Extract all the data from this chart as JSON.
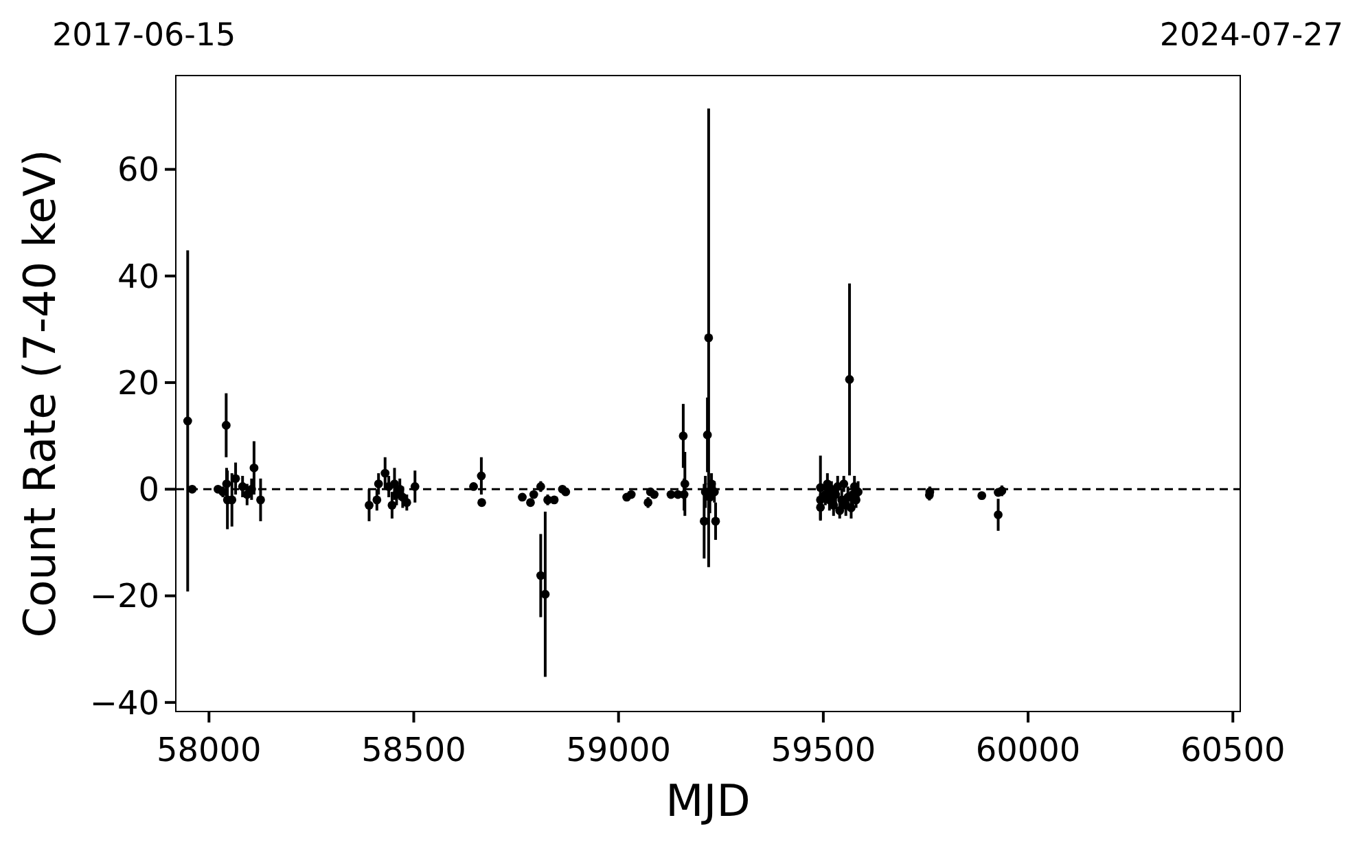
{
  "chart_data": {
    "type": "scatter",
    "xlabel": "MJD",
    "ylabel": "Count Rate (7-40 keV)",
    "xlim": [
      57919,
      60518
    ],
    "xticks": [
      58000,
      58500,
      59000,
      59500,
      60000,
      60500
    ],
    "annotations": [
      "2017-06-15",
      "2024-07-27"
    ],
    "ylim": [
      -41.7,
      77.6
    ],
    "yticks": [
      {
        "value": -40,
        "label": "−40"
      },
      {
        "value": -20,
        "label": "−20"
      },
      0,
      20,
      40,
      60
    ],
    "marker": "circle",
    "grid": false,
    "ref_lines": [
      {
        "axis": "y",
        "value": 0,
        "color": "#000000",
        "line_style": "dashed"
      }
    ],
    "series": [
      {
        "color": "#000000",
        "x": [
          57948,
          57959,
          58022,
          58034,
          58042,
          58043,
          58045,
          58056,
          58065,
          58082,
          58093,
          58104,
          58110,
          58126,
          58391,
          58410,
          58414,
          58430,
          58439,
          58447,
          58453,
          58458,
          58466,
          58473,
          58483,
          58503,
          58646,
          58665,
          58666,
          58765,
          58785,
          58793,
          58810,
          58810,
          58821,
          58827,
          58843,
          58863,
          58871,
          59020,
          59031,
          59072,
          59078,
          59087,
          59128,
          59145,
          59158,
          59162,
          59160,
          59209,
          59212,
          59217,
          59220,
          59223,
          59227,
          59234,
          59237,
          59493,
          59493,
          59493,
          59505,
          59510,
          59515,
          59520,
          59525,
          59530,
          59535,
          59540,
          59545,
          59550,
          59555,
          59560,
          59564,
          59568,
          59572,
          59576,
          59580,
          59585,
          59759,
          59760,
          59887,
          59927,
          59927,
          59936
        ],
        "values": [
          12.8,
          0,
          0,
          -0.5,
          12,
          1,
          -2,
          -2,
          2,
          0.5,
          -1,
          0,
          4,
          -2,
          -3,
          -2,
          1,
          3,
          0.5,
          -3,
          1,
          -1,
          0,
          -1.5,
          -2.5,
          0.5,
          0.5,
          2.5,
          -2.5,
          -1.5,
          -2.5,
          -1,
          0.5,
          -16.2,
          -19.7,
          -2,
          -2,
          0,
          -0.5,
          -1.5,
          -1,
          -2.5,
          -0.5,
          -1,
          -1,
          -1,
          10,
          1,
          -1,
          -6,
          -0.5,
          10.2,
          28.4,
          -1.5,
          1,
          -0.5,
          -6,
          0.3,
          -2,
          -3.4,
          -1,
          1,
          -2,
          0,
          -3,
          -1,
          0.5,
          -4,
          -2,
          1,
          -3,
          -1.5,
          20.6,
          -3.5,
          -1,
          0.5,
          -2,
          -0.5,
          -1.1,
          -0.5,
          -1.2,
          -4.8,
          -0.6,
          -0.3
        ],
        "errors": [
          32,
          0.5,
          0.5,
          1,
          6,
          3,
          5.5,
          5,
          3,
          2,
          2,
          2,
          5,
          4,
          3,
          2,
          2,
          3,
          2,
          2.5,
          3,
          2,
          2,
          2,
          1.5,
          3,
          0.5,
          3.5,
          0.5,
          0.5,
          0.5,
          0.5,
          1,
          7.8,
          15.5,
          1,
          0.5,
          0.5,
          0.5,
          0.5,
          0.5,
          1,
          0.5,
          0.5,
          0.5,
          0.5,
          6,
          6,
          3,
          7,
          3,
          7,
          43,
          3,
          2,
          2,
          3.5,
          6,
          1,
          2.5,
          2,
          2,
          2,
          1.5,
          2,
          2,
          2,
          1.5,
          2,
          1.5,
          2,
          2,
          18,
          2,
          2,
          2,
          1.5,
          2,
          1,
          1,
          0.5,
          3,
          0.5,
          1
        ]
      }
    ]
  }
}
